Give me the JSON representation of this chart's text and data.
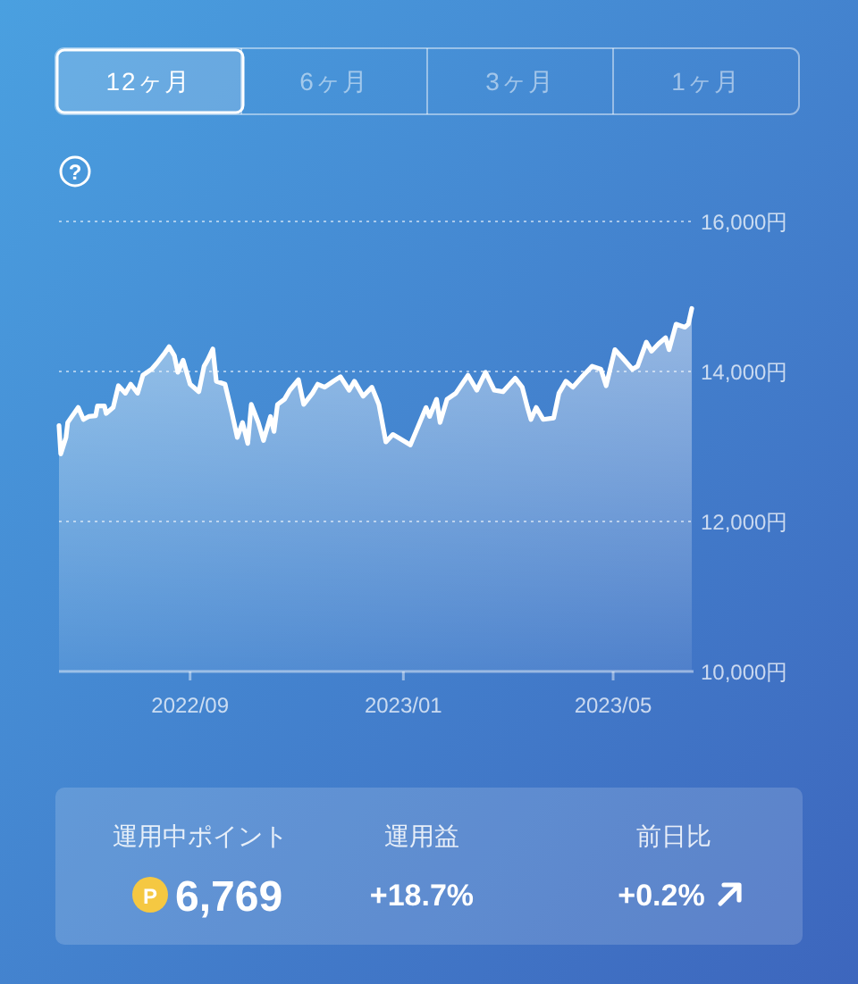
{
  "chart_data": [
    {
      "type": "area",
      "annotations": [
        "12ヶ月",
        "6ヶ月",
        "3ヶ月",
        "1ヶ月",
        "?"
      ],
      "x": [
        "2022-06-18",
        "2022-06-19",
        "2022-06-22",
        "2022-06-23",
        "2022-06-29",
        "2022-07-02",
        "2022-07-05",
        "2022-07-09",
        "2022-07-10",
        "2022-07-14",
        "2022-07-15",
        "2022-07-19",
        "2022-07-22",
        "2022-07-26",
        "2022-07-29",
        "2022-08-02",
        "2022-08-05",
        "2022-08-10",
        "2022-08-13",
        "2022-08-17",
        "2022-08-20",
        "2022-08-23",
        "2022-08-25",
        "2022-08-28",
        "2022-09-01",
        "2022-09-06",
        "2022-09-09",
        "2022-09-11",
        "2022-09-14",
        "2022-09-16",
        "2022-09-21",
        "2022-09-25",
        "2022-09-28",
        "2022-10-01",
        "2022-10-04",
        "2022-10-06",
        "2022-10-10",
        "2022-10-13",
        "2022-10-17",
        "2022-10-19",
        "2022-10-21",
        "2022-10-25",
        "2022-10-28",
        "2022-11-02",
        "2022-11-05",
        "2022-11-10",
        "2022-11-13",
        "2022-11-17",
        "2022-11-22",
        "2022-11-26",
        "2022-12-01",
        "2022-12-04",
        "2022-12-09",
        "2022-12-14",
        "2022-12-18",
        "2022-12-22",
        "2022-12-26",
        "2022-12-29",
        "2023-01-05",
        "2023-01-09",
        "2023-01-14",
        "2023-01-16",
        "2023-01-20",
        "2023-01-22",
        "2023-01-26",
        "2023-01-31",
        "2023-02-07",
        "2023-02-12",
        "2023-02-17",
        "2023-02-22",
        "2023-02-27",
        "2023-03-06",
        "2023-03-10",
        "2023-03-13",
        "2023-03-15",
        "2023-03-18",
        "2023-03-22",
        "2023-03-28",
        "2023-03-31",
        "2023-04-04",
        "2023-04-08",
        "2023-04-14",
        "2023-04-19",
        "2023-04-24",
        "2023-04-27",
        "2023-05-02",
        "2023-05-06",
        "2023-05-12",
        "2023-05-15",
        "2023-05-20",
        "2023-05-23",
        "2023-05-27",
        "2023-05-31",
        "2023-06-02",
        "2023-06-06",
        "2023-06-11",
        "2023-06-13",
        "2023-06-15"
      ],
      "series": [
        {
          "color": "#ffffff",
          "values": [
            13280,
            12900,
            13120,
            13320,
            13520,
            13360,
            13400,
            13410,
            13540,
            13540,
            13440,
            13520,
            13810,
            13710,
            13830,
            13710,
            13950,
            14030,
            14110,
            14230,
            14330,
            14210,
            13990,
            14150,
            13830,
            13730,
            14070,
            14150,
            14300,
            13870,
            13830,
            13440,
            13120,
            13320,
            13040,
            13560,
            13320,
            13080,
            13400,
            13200,
            13560,
            13630,
            13750,
            13890,
            13560,
            13710,
            13830,
            13790,
            13870,
            13930,
            13750,
            13870,
            13670,
            13790,
            13560,
            13060,
            13160,
            13120,
            13020,
            13240,
            13520,
            13400,
            13630,
            13320,
            13630,
            13710,
            13950,
            13750,
            13990,
            13750,
            13730,
            13910,
            13790,
            13520,
            13360,
            13520,
            13360,
            13380,
            13710,
            13870,
            13790,
            13950,
            14070,
            14030,
            13810,
            14290,
            14190,
            14030,
            14070,
            14390,
            14270,
            14370,
            14450,
            14290,
            14630,
            14590,
            14630,
            14840
          ]
        }
      ],
      "xlim": [
        "2022-06-18",
        "2023-06-16"
      ],
      "xticks": [
        {
          "value": "2022-09-01",
          "label": "2022/09"
        },
        {
          "value": "2023-01-01",
          "label": "2023/01"
        },
        {
          "value": "2023-05-01",
          "label": "2023/05"
        }
      ],
      "ylim": [
        10000,
        16000
      ],
      "yticks": [
        {
          "value": 10000,
          "label": "10,000円"
        },
        {
          "value": 12000,
          "label": "12,000円"
        },
        {
          "value": 14000,
          "label": "14,000円"
        },
        {
          "value": 16000,
          "label": "16,000円"
        }
      ],
      "grid": "y"
    },
    {
      "type": "other",
      "annotations": [
        "運用中ポイント",
        "P",
        "6,769",
        "運用益",
        "+18.7%",
        "前日比",
        "+0.2%"
      ]
    }
  ]
}
